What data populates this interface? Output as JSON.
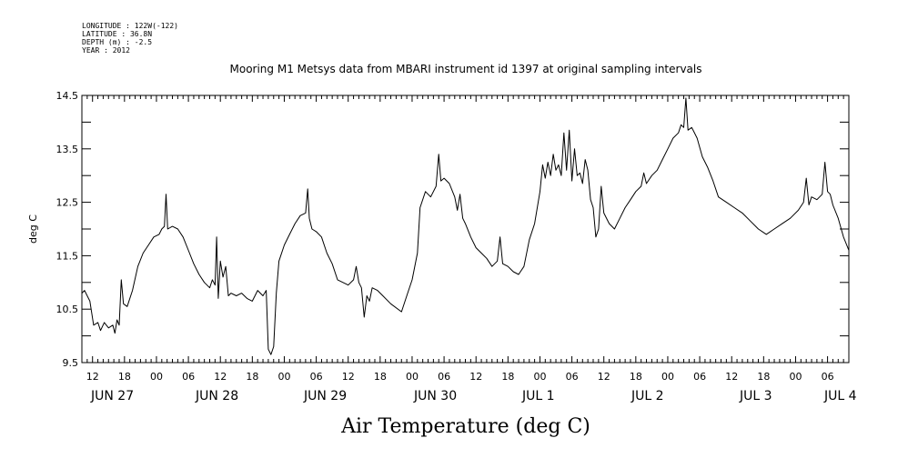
{
  "header": {
    "meta_lines": [
      "LONGITUDE : 122W(-122)",
      "LATITUDE : 36.8N",
      "DEPTH (m) : -2.5",
      "YEAR : 2012"
    ]
  },
  "chart_data": {
    "type": "line",
    "title": "Mooring M1 Metsys data from MBARI instrument id 1397 at original sampling intervals",
    "xlabel": "Air Temperature (deg C)",
    "ylabel": "deg C",
    "ylim": [
      9.5,
      14.5
    ],
    "yticks": [
      "9.5",
      "10.5",
      "11.5",
      "12.5",
      "13.5",
      "14.5"
    ],
    "x_units": "hours since 2012-06-27 00:00",
    "xlim": [
      10,
      154
    ],
    "x_hour_ticks": [
      {
        "x": 12,
        "label": "12"
      },
      {
        "x": 18,
        "label": "18"
      },
      {
        "x": 24,
        "label": "00"
      },
      {
        "x": 30,
        "label": "06"
      },
      {
        "x": 36,
        "label": "12"
      },
      {
        "x": 42,
        "label": "18"
      },
      {
        "x": 48,
        "label": "00"
      },
      {
        "x": 54,
        "label": "06"
      },
      {
        "x": 60,
        "label": "12"
      },
      {
        "x": 66,
        "label": "18"
      },
      {
        "x": 72,
        "label": "00"
      },
      {
        "x": 78,
        "label": "06"
      },
      {
        "x": 84,
        "label": "12"
      },
      {
        "x": 90,
        "label": "18"
      },
      {
        "x": 96,
        "label": "00"
      },
      {
        "x": 102,
        "label": "06"
      },
      {
        "x": 108,
        "label": "12"
      },
      {
        "x": 114,
        "label": "18"
      },
      {
        "x": 120,
        "label": "00"
      },
      {
        "x": 126,
        "label": "06"
      },
      {
        "x": 132,
        "label": "12"
      },
      {
        "x": 138,
        "label": "18"
      },
      {
        "x": 144,
        "label": "00"
      },
      {
        "x": 150,
        "label": "06"
      }
    ],
    "x_day_labels": [
      {
        "x": 12,
        "label": "JUN 27"
      },
      {
        "x": 36,
        "label": "JUN 28"
      },
      {
        "x": 60,
        "label": "JUN 29"
      },
      {
        "x": 84,
        "label": "JUN 30"
      },
      {
        "x": 108,
        "label": "JUL  1"
      },
      {
        "x": 132,
        "label": "JUL  2"
      },
      {
        "x": 156,
        "label": "JUL  3"
      },
      {
        "x": 168,
        "label": "JUL  4"
      }
    ],
    "series": [
      {
        "color": "#000000",
        "points": [
          [
            10.0,
            10.8
          ],
          [
            10.5,
            10.85
          ],
          [
            11.5,
            10.65
          ],
          [
            12.2,
            10.2
          ],
          [
            13.0,
            10.25
          ],
          [
            13.5,
            10.1
          ],
          [
            14.2,
            10.25
          ],
          [
            15.0,
            10.15
          ],
          [
            15.8,
            10.2
          ],
          [
            16.2,
            10.05
          ],
          [
            16.6,
            10.3
          ],
          [
            17.0,
            10.2
          ],
          [
            17.4,
            11.05
          ],
          [
            17.8,
            10.6
          ],
          [
            18.5,
            10.55
          ],
          [
            19.5,
            10.85
          ],
          [
            20.5,
            11.3
          ],
          [
            21.5,
            11.55
          ],
          [
            22.5,
            11.7
          ],
          [
            23.5,
            11.85
          ],
          [
            24.5,
            11.9
          ],
          [
            25.0,
            12.0
          ],
          [
            25.5,
            12.05
          ],
          [
            25.8,
            12.65
          ],
          [
            26.1,
            12.0
          ],
          [
            27.0,
            12.05
          ],
          [
            28.0,
            12.0
          ],
          [
            29.0,
            11.85
          ],
          [
            30.0,
            11.6
          ],
          [
            31.0,
            11.35
          ],
          [
            32.0,
            11.15
          ],
          [
            33.0,
            11.0
          ],
          [
            34.0,
            10.9
          ],
          [
            34.5,
            11.05
          ],
          [
            35.0,
            10.95
          ],
          [
            35.3,
            11.85
          ],
          [
            35.6,
            10.7
          ],
          [
            36.0,
            11.4
          ],
          [
            36.5,
            11.1
          ],
          [
            37.0,
            11.3
          ],
          [
            37.5,
            10.75
          ],
          [
            38.0,
            10.8
          ],
          [
            39.0,
            10.75
          ],
          [
            40.0,
            10.8
          ],
          [
            41.0,
            10.7
          ],
          [
            42.0,
            10.65
          ],
          [
            43.0,
            10.85
          ],
          [
            44.0,
            10.75
          ],
          [
            44.6,
            10.85
          ],
          [
            45.0,
            9.75
          ],
          [
            45.5,
            9.65
          ],
          [
            46.0,
            9.8
          ],
          [
            46.5,
            10.8
          ],
          [
            47.0,
            11.4
          ],
          [
            48.0,
            11.7
          ],
          [
            49.0,
            11.9
          ],
          [
            50.0,
            12.1
          ],
          [
            51.0,
            12.25
          ],
          [
            52.0,
            12.3
          ],
          [
            52.4,
            12.75
          ],
          [
            52.7,
            12.2
          ],
          [
            53.2,
            12.0
          ],
          [
            54.0,
            11.95
          ],
          [
            55.0,
            11.85
          ],
          [
            56.0,
            11.55
          ],
          [
            57.0,
            11.35
          ],
          [
            58.0,
            11.05
          ],
          [
            59.0,
            11.0
          ],
          [
            60.0,
            10.95
          ],
          [
            61.0,
            11.05
          ],
          [
            61.5,
            11.3
          ],
          [
            62.0,
            11.0
          ],
          [
            62.5,
            10.9
          ],
          [
            63.0,
            10.35
          ],
          [
            63.5,
            10.75
          ],
          [
            64.0,
            10.65
          ],
          [
            64.5,
            10.9
          ],
          [
            65.5,
            10.85
          ],
          [
            66.5,
            10.75
          ],
          [
            68.0,
            10.6
          ],
          [
            70.0,
            10.45
          ],
          [
            71.0,
            10.75
          ],
          [
            72.0,
            11.05
          ],
          [
            73.0,
            11.55
          ],
          [
            73.5,
            12.4
          ],
          [
            74.5,
            12.7
          ],
          [
            75.5,
            12.6
          ],
          [
            76.5,
            12.8
          ],
          [
            77.0,
            13.4
          ],
          [
            77.4,
            12.9
          ],
          [
            78.0,
            12.95
          ],
          [
            79.0,
            12.85
          ],
          [
            80.0,
            12.6
          ],
          [
            80.5,
            12.35
          ],
          [
            81.0,
            12.65
          ],
          [
            81.5,
            12.2
          ],
          [
            82.0,
            12.1
          ],
          [
            83.0,
            11.85
          ],
          [
            84.0,
            11.65
          ],
          [
            85.0,
            11.55
          ],
          [
            86.0,
            11.45
          ],
          [
            87.0,
            11.3
          ],
          [
            88.0,
            11.4
          ],
          [
            88.5,
            11.85
          ],
          [
            89.0,
            11.35
          ],
          [
            90.0,
            11.3
          ],
          [
            91.0,
            11.2
          ],
          [
            92.0,
            11.15
          ],
          [
            93.0,
            11.3
          ],
          [
            94.0,
            11.8
          ],
          [
            95.0,
            12.1
          ],
          [
            96.0,
            12.7
          ],
          [
            96.5,
            13.2
          ],
          [
            97.0,
            12.95
          ],
          [
            97.5,
            13.25
          ],
          [
            98.0,
            13.0
          ],
          [
            98.5,
            13.4
          ],
          [
            99.0,
            13.1
          ],
          [
            99.5,
            13.2
          ],
          [
            100.0,
            13.0
          ],
          [
            100.5,
            13.8
          ],
          [
            101.0,
            13.1
          ],
          [
            101.5,
            13.85
          ],
          [
            102.0,
            12.9
          ],
          [
            102.5,
            13.5
          ],
          [
            103.0,
            13.0
          ],
          [
            103.5,
            13.05
          ],
          [
            104.0,
            12.85
          ],
          [
            104.5,
            13.3
          ],
          [
            105.0,
            13.1
          ],
          [
            105.5,
            12.55
          ],
          [
            106.0,
            12.4
          ],
          [
            106.5,
            11.85
          ],
          [
            107.0,
            12.0
          ],
          [
            107.5,
            12.8
          ],
          [
            108.0,
            12.3
          ],
          [
            109.0,
            12.1
          ],
          [
            110.0,
            12.0
          ],
          [
            111.0,
            12.2
          ],
          [
            112.0,
            12.4
          ],
          [
            113.0,
            12.55
          ],
          [
            114.0,
            12.7
          ],
          [
            115.0,
            12.8
          ],
          [
            115.5,
            13.05
          ],
          [
            116.0,
            12.85
          ],
          [
            117.0,
            13.0
          ],
          [
            118.0,
            13.1
          ],
          [
            119.0,
            13.3
          ],
          [
            120.0,
            13.5
          ],
          [
            121.0,
            13.7
          ],
          [
            122.0,
            13.8
          ],
          [
            122.5,
            13.95
          ],
          [
            123.0,
            13.9
          ],
          [
            123.4,
            14.45
          ],
          [
            123.8,
            13.85
          ],
          [
            124.5,
            13.9
          ],
          [
            125.5,
            13.7
          ],
          [
            126.5,
            13.35
          ],
          [
            127.5,
            13.15
          ],
          [
            128.5,
            12.9
          ],
          [
            129.5,
            12.6
          ],
          [
            131.0,
            12.5
          ],
          [
            132.5,
            12.4
          ],
          [
            134.0,
            12.3
          ],
          [
            135.5,
            12.15
          ],
          [
            137.0,
            12.0
          ],
          [
            138.5,
            11.9
          ],
          [
            140.0,
            12.0
          ],
          [
            141.5,
            12.1
          ],
          [
            143.0,
            12.2
          ],
          [
            144.5,
            12.35
          ],
          [
            145.5,
            12.5
          ],
          [
            146.0,
            12.95
          ],
          [
            146.5,
            12.45
          ],
          [
            147.0,
            12.6
          ],
          [
            148.0,
            12.55
          ],
          [
            149.0,
            12.65
          ],
          [
            149.5,
            13.25
          ],
          [
            150.0,
            12.7
          ],
          [
            150.5,
            12.65
          ],
          [
            151.0,
            12.45
          ],
          [
            152.0,
            12.2
          ],
          [
            153.0,
            11.85
          ],
          [
            154.0,
            11.6
          ]
        ]
      }
    ]
  }
}
